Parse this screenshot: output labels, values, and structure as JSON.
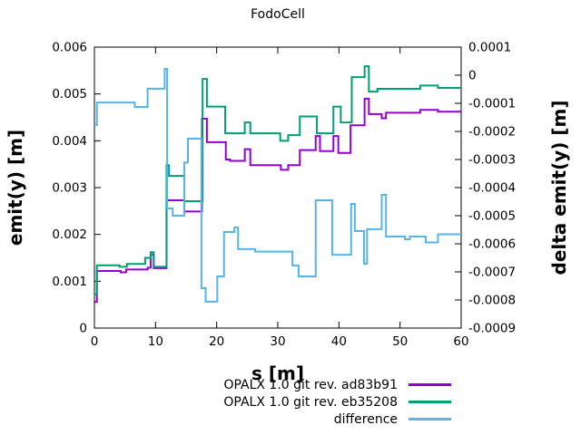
{
  "window": {
    "title": "FodoCell"
  },
  "colors": {
    "series_rev_a": "#9400d3",
    "series_rev_b": "#009e73",
    "series_difference": "#56b4e9",
    "axis": "#000000",
    "background": "#ffffff"
  },
  "chart_data": {
    "type": "line",
    "step": true,
    "title": "FodoCell",
    "grid": false,
    "legend_position": "below-right",
    "x_axis": {
      "label": "s [m]",
      "min": 0,
      "max": 60,
      "ticks": [
        {
          "v": 0,
          "label": "0"
        },
        {
          "v": 10,
          "label": "10"
        },
        {
          "v": 20,
          "label": "20"
        },
        {
          "v": 30,
          "label": "30"
        },
        {
          "v": 40,
          "label": "40"
        },
        {
          "v": 50,
          "label": "50"
        },
        {
          "v": 60,
          "label": "60"
        }
      ]
    },
    "y_left_axis": {
      "label": "emit(y) [m]",
      "min": 0,
      "max": 0.006,
      "ticks": [
        {
          "v": 0,
          "label": "0"
        },
        {
          "v": 0.001,
          "label": "0.001"
        },
        {
          "v": 0.002,
          "label": "0.002"
        },
        {
          "v": 0.003,
          "label": "0.003"
        },
        {
          "v": 0.004,
          "label": "0.004"
        },
        {
          "v": 0.005,
          "label": "0.005"
        },
        {
          "v": 0.006,
          "label": "0.006"
        }
      ]
    },
    "y_right_axis": {
      "label": "delta emit(y) [m]",
      "min": -0.0009,
      "max": 0.0001,
      "ticks": [
        {
          "v": 0.0001,
          "label": "0.0001"
        },
        {
          "v": 0,
          "label": "0"
        },
        {
          "v": -0.0001,
          "label": "-0.0001"
        },
        {
          "v": -0.0002,
          "label": "-0.0002"
        },
        {
          "v": -0.0003,
          "label": "-0.0003"
        },
        {
          "v": -0.0004,
          "label": "-0.0004"
        },
        {
          "v": -0.0005,
          "label": "-0.0005"
        },
        {
          "v": -0.0006,
          "label": "-0.0006"
        },
        {
          "v": -0.0007,
          "label": "-0.0007"
        },
        {
          "v": -0.0008,
          "label": "-0.0008"
        },
        {
          "v": -0.0009,
          "label": "-0.0009"
        }
      ]
    },
    "series": [
      {
        "name": "OPALX 1.0 git rev. ad83b91",
        "color": "#9400d3",
        "axis": "left",
        "steps": [
          [
            0,
            0.00056
          ],
          [
            0.4,
            0.00122
          ],
          [
            4.3,
            0.00119
          ],
          [
            5.2,
            0.00125
          ],
          [
            8.7,
            0.00129
          ],
          [
            9.2,
            0.00157
          ],
          [
            9.7,
            0.00128
          ],
          [
            11.8,
            0.00273
          ],
          [
            14.7,
            0.00249
          ],
          [
            17.6,
            0.00447
          ],
          [
            18.4,
            0.00397
          ],
          [
            21.5,
            0.0036
          ],
          [
            22.2,
            0.00357
          ],
          [
            24.6,
            0.00382
          ],
          [
            25.5,
            0.00348
          ],
          [
            30.5,
            0.00338
          ],
          [
            31.7,
            0.00348
          ],
          [
            33.6,
            0.0038
          ],
          [
            36.2,
            0.0041
          ],
          [
            36.9,
            0.00378
          ],
          [
            39.1,
            0.0041
          ],
          [
            39.9,
            0.00374
          ],
          [
            41.9,
            0.00433
          ],
          [
            44.2,
            0.0049
          ],
          [
            44.9,
            0.00457
          ],
          [
            47,
            0.00448
          ],
          [
            47.7,
            0.0046
          ],
          [
            53.3,
            0.00466
          ],
          [
            56.2,
            0.00462
          ]
        ]
      },
      {
        "name": "OPALX 1.0 git rev. eb35208",
        "color": "#009e73",
        "axis": "left",
        "steps": [
          [
            0,
            0.00072
          ],
          [
            0.4,
            0.00134
          ],
          [
            4.1,
            0.00131
          ],
          [
            5.3,
            0.00137
          ],
          [
            8.3,
            0.0015
          ],
          [
            9.2,
            0.00162
          ],
          [
            9.7,
            0.00131
          ],
          [
            11.8,
            0.00348
          ],
          [
            12.2,
            0.00325
          ],
          [
            14.7,
            0.00271
          ],
          [
            17.7,
            0.00532
          ],
          [
            18.4,
            0.00473
          ],
          [
            21.4,
            0.00416
          ],
          [
            24.6,
            0.00439
          ],
          [
            25.5,
            0.00416
          ],
          [
            30.4,
            0.004
          ],
          [
            31.7,
            0.00412
          ],
          [
            33.6,
            0.00452
          ],
          [
            36.4,
            0.00416
          ],
          [
            39.1,
            0.00473
          ],
          [
            40.3,
            0.00439
          ],
          [
            42.1,
            0.00536
          ],
          [
            44.2,
            0.00559
          ],
          [
            44.9,
            0.00505
          ],
          [
            46.3,
            0.00511
          ],
          [
            53.3,
            0.00518
          ],
          [
            56.2,
            0.00513
          ]
        ]
      },
      {
        "name": "difference",
        "color": "#56b4e9",
        "axis": "right",
        "steps": [
          [
            0,
            -0.000177
          ],
          [
            0.4,
            -9.7e-05
          ],
          [
            6.6,
            -0.000113
          ],
          [
            8.7,
            -4.8e-05
          ],
          [
            11.5,
            2.2e-05
          ],
          [
            11.9,
            -0.000474
          ],
          [
            12.8,
            -0.0005
          ],
          [
            14.7,
            -0.000311
          ],
          [
            15.3,
            -0.000226
          ],
          [
            17.5,
            -0.000758
          ],
          [
            18.2,
            -0.000806
          ],
          [
            20.1,
            -0.000716
          ],
          [
            21.2,
            -0.000558
          ],
          [
            22.9,
            -0.000542
          ],
          [
            23.5,
            -0.000619
          ],
          [
            26.3,
            -0.000628
          ],
          [
            32.4,
            -0.000677
          ],
          [
            33.4,
            -0.000716
          ],
          [
            36.2,
            -0.000445
          ],
          [
            38.9,
            -0.000639
          ],
          [
            42,
            -0.000458
          ],
          [
            42.6,
            -0.000555
          ],
          [
            44.1,
            -0.000671
          ],
          [
            44.6,
            -0.000548
          ],
          [
            47,
            -0.000426
          ],
          [
            47.7,
            -0.000574
          ],
          [
            50.8,
            -0.000584
          ],
          [
            51.6,
            -0.000574
          ],
          [
            54.2,
            -0.000595
          ],
          [
            56.2,
            -0.000566
          ]
        ]
      }
    ]
  }
}
